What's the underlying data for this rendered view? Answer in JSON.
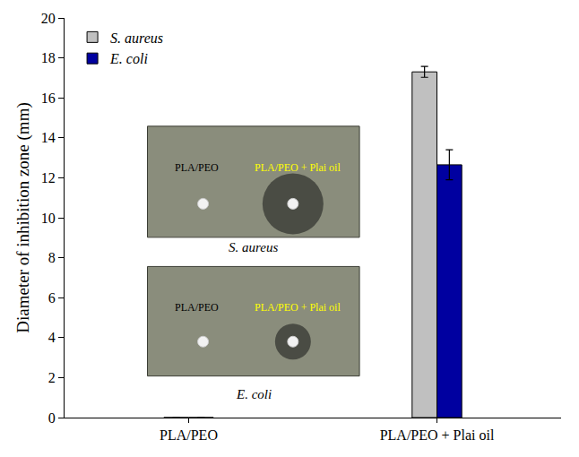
{
  "chart_data": {
    "type": "bar",
    "y_label": "Diameter of inhibition zone (mm)",
    "categories": [
      "PLA/PEO",
      "PLA/PEO + Plai oil"
    ],
    "series": [
      {
        "name": "S. aureus",
        "color": "#c0c0c0",
        "values": [
          0,
          17.3
        ],
        "errors": [
          null,
          0.27
        ]
      },
      {
        "name": "E. coli",
        "color": "#0000a0",
        "values": [
          0,
          12.65
        ],
        "errors": [
          null,
          0.75
        ]
      }
    ],
    "ylim": [
      0,
      20
    ],
    "yticks": [
      0,
      2,
      4,
      6,
      8,
      10,
      12,
      14,
      16,
      18,
      20
    ],
    "grid": false,
    "legend": "upper left",
    "annotations": [
      {
        "caption": "S. aureus",
        "labels": [
          "PLA/PEO",
          "PLA/PEO + Plai oil"
        ]
      },
      {
        "caption": "E. coli",
        "labels": [
          "PLA/PEO",
          "PLA/PEO + Plai oil"
        ]
      }
    ]
  }
}
